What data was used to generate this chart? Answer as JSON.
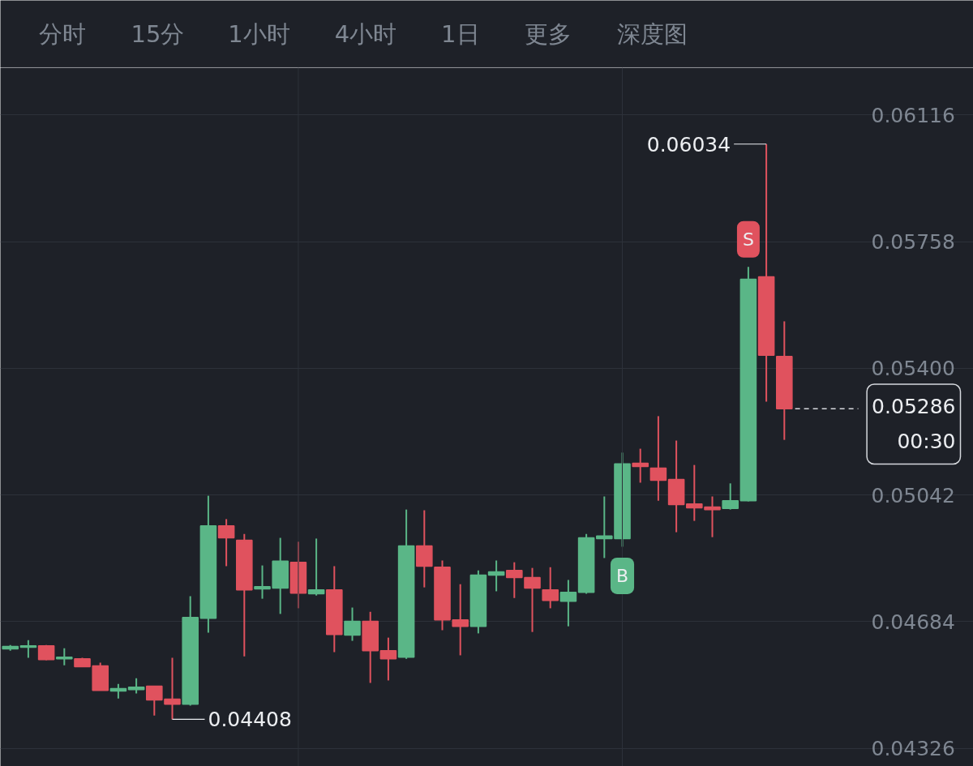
{
  "chart_data": {
    "type": "candlestick",
    "categories": [
      null,
      null,
      null,
      null,
      null,
      null,
      null,
      null,
      null,
      null,
      null,
      null,
      null,
      null,
      null,
      null,
      null,
      null,
      null,
      null,
      null,
      null,
      null,
      null,
      null,
      null,
      null,
      null,
      null,
      null,
      null,
      null,
      null,
      null,
      null,
      null,
      null,
      null,
      null,
      null,
      null,
      null,
      null,
      null
    ],
    "ohlc": [
      [
        0.04607,
        0.04618,
        0.04602,
        0.04614
      ],
      [
        0.04612,
        0.04632,
        0.04582,
        0.04616
      ],
      [
        0.04616,
        0.04618,
        0.04575,
        0.04577
      ],
      [
        0.04579,
        0.04609,
        0.04561,
        0.04584
      ],
      [
        0.04579,
        0.04582,
        0.04557,
        0.04557
      ],
      [
        0.04559,
        0.04568,
        0.0449,
        0.0449
      ],
      [
        0.04488,
        0.04508,
        0.04467,
        0.04495
      ],
      [
        0.04492,
        0.04524,
        0.04481,
        0.04499
      ],
      [
        0.04502,
        0.04502,
        0.04419,
        0.04463
      ],
      [
        0.04465,
        0.04582,
        0.04408,
        0.04451
      ],
      [
        0.04451,
        0.04756,
        0.04447,
        0.04696
      ],
      [
        0.04694,
        0.0504,
        0.04653,
        0.04955
      ],
      [
        0.04955,
        0.04974,
        0.04841,
        0.04921
      ],
      [
        0.04914,
        0.04932,
        0.04586,
        0.04774
      ],
      [
        0.04777,
        0.04843,
        0.04749,
        0.04783
      ],
      [
        0.04779,
        0.04921,
        0.04706,
        0.04855
      ],
      [
        0.04852,
        0.0491,
        0.04722,
        0.04765
      ],
      [
        0.04763,
        0.04919,
        0.04758,
        0.04774
      ],
      [
        0.04774,
        0.04841,
        0.04598,
        0.04648
      ],
      [
        0.04646,
        0.04724,
        0.0463,
        0.04685
      ],
      [
        0.04685,
        0.04712,
        0.04511,
        0.04602
      ],
      [
        0.04602,
        0.04639,
        0.04518,
        0.04579
      ],
      [
        0.04584,
        0.05001,
        0.04579,
        0.04898
      ],
      [
        0.04898,
        0.04999,
        0.04781,
        0.04841
      ],
      [
        0.04838,
        0.04857,
        0.0466,
        0.04689
      ],
      [
        0.04689,
        0.0479,
        0.04589,
        0.04671
      ],
      [
        0.04671,
        0.04829,
        0.04651,
        0.04816
      ],
      [
        0.04816,
        0.04857,
        0.0477,
        0.04825
      ],
      [
        0.04829,
        0.04852,
        0.04751,
        0.04809
      ],
      [
        0.04809,
        0.04836,
        0.04655,
        0.04779
      ],
      [
        0.04774,
        0.04838,
        0.04722,
        0.04744
      ],
      [
        0.04742,
        0.04802,
        0.04671,
        0.04767
      ],
      [
        0.04767,
        0.04932,
        0.04763,
        0.04921
      ],
      [
        0.04919,
        0.05038,
        0.04864,
        0.04926
      ],
      [
        0.04919,
        0.05162,
        0.04896,
        0.0513
      ],
      [
        0.05132,
        0.05173,
        0.05077,
        0.05123
      ],
      [
        0.05118,
        0.05265,
        0.05026,
        0.05084
      ],
      [
        0.05086,
        0.05196,
        0.04937,
        0.05015
      ],
      [
        0.05017,
        0.05127,
        0.04969,
        0.05006
      ],
      [
        0.05008,
        0.05038,
        0.04923,
        0.05001
      ],
      [
        0.05004,
        0.05075,
        0.05001,
        0.05026
      ],
      [
        0.05026,
        0.05687,
        0.05024,
        0.05652
      ],
      [
        0.05659,
        0.06034,
        0.05306,
        0.05437
      ],
      [
        0.05434,
        0.05533,
        0.05198,
        0.05286
      ]
    ],
    "colors": [
      "#5ab687",
      "#5ab687",
      "#e0525e",
      "#5ab687",
      "#e0525e",
      "#e0525e",
      "#5ab687",
      "#5ab687",
      "#e0525e",
      "#e0525e",
      "#5ab687",
      "#5ab687",
      "#e0525e",
      "#e0525e",
      "#5ab687",
      "#5ab687",
      "#e0525e",
      "#5ab687",
      "#e0525e",
      "#5ab687",
      "#e0525e",
      "#e0525e",
      "#5ab687",
      "#e0525e",
      "#e0525e",
      "#e0525e",
      "#5ab687",
      "#5ab687",
      "#e0525e",
      "#e0525e",
      "#e0525e",
      "#5ab687",
      "#5ab687",
      "#5ab687",
      "#5ab687",
      "#e0525e",
      "#e0525e",
      "#e0525e",
      "#e0525e",
      "#e0525e",
      "#5ab687",
      "#5ab687",
      "#e0525e",
      "#e0525e"
    ],
    "value_labels": [
      null,
      null,
      null,
      null,
      null,
      null,
      null,
      null,
      null,
      "0.04408",
      null,
      null,
      null,
      null,
      null,
      null,
      null,
      null,
      null,
      null,
      null,
      null,
      null,
      null,
      null,
      null,
      null,
      null,
      null,
      null,
      null,
      null,
      null,
      null,
      null,
      null,
      null,
      null,
      null,
      null,
      null,
      null,
      "0.06034",
      null
    ],
    "ylim": [
      0.04275,
      0.0625
    ],
    "yticks": [
      {
        "value": 0.04326,
        "label": "0.04326"
      },
      {
        "value": 0.04684,
        "label": "0.04684"
      },
      {
        "value": 0.05042,
        "label": "0.05042"
      },
      {
        "value": 0.054,
        "label": "0.05400"
      },
      {
        "value": 0.05758,
        "label": "0.05758"
      },
      {
        "value": 0.06116,
        "label": "0.06116"
      }
    ],
    "tick_labels": "y",
    "grid": true,
    "ref_lines": [
      {
        "axis": "y",
        "value": 0.05286,
        "label": "0.05286\n00:30",
        "color": "#d5d8dd",
        "line_style": "dashed"
      }
    ],
    "annotations": [
      "分时",
      "15分",
      "1小时",
      "4小时",
      "1日",
      "更多",
      "深度图",
      {
        "text": "S",
        "y": 0.05687
      },
      {
        "text": "B",
        "y": 0.04896
      }
    ]
  }
}
